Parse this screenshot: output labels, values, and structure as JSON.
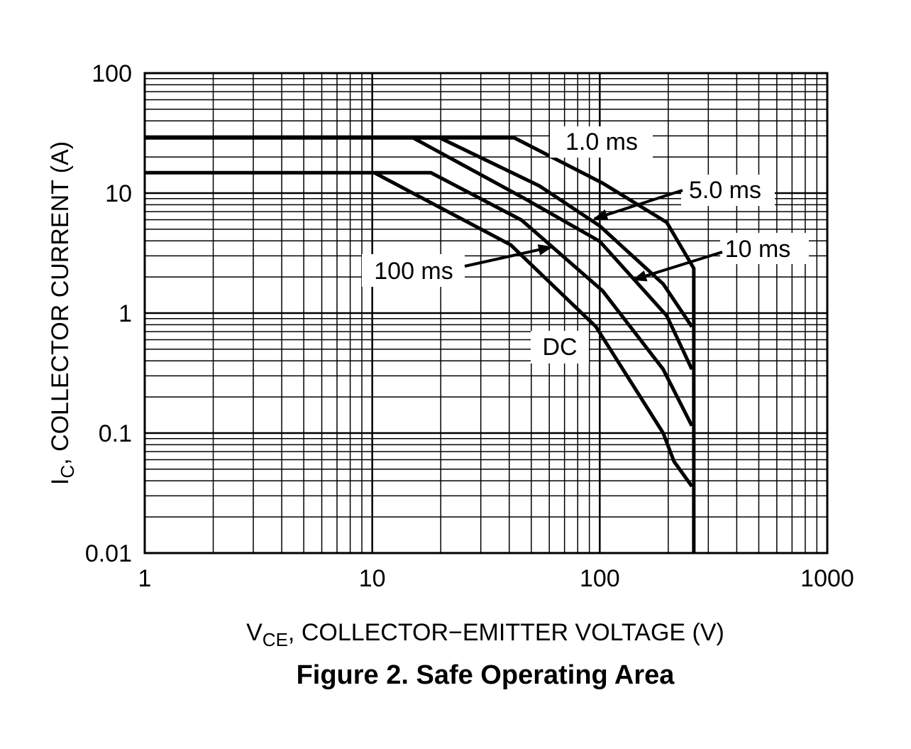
{
  "chart_data": {
    "type": "line",
    "title": "Figure 2. Safe Operating Area",
    "x_label": {
      "main": "V",
      "sub": "CE",
      "rest": ", COLLECTOR−EMITTER VOLTAGE (V)"
    },
    "y_label": {
      "main": "I",
      "sub": "C",
      "rest": ", COLLECTOR CURRENT (A)"
    },
    "log_x": true,
    "log_y": true,
    "grid": true,
    "minor_grid": true,
    "xlim": [
      1,
      1000
    ],
    "ylim": [
      0.01,
      100
    ],
    "xticks": [
      1,
      10,
      100,
      1000
    ],
    "yticks": [
      0.01,
      0.1,
      1,
      10,
      100
    ],
    "series": [
      {
        "name": "1.0 ms",
        "color": "#000000",
        "x": [
          1,
          42.1,
          103,
          197,
          259,
          259
        ],
        "values": [
          28.9,
          28.9,
          12.1,
          5.7,
          2.36,
          0.01
        ]
      },
      {
        "name": "5.0 ms",
        "color": "#000000",
        "x": [
          1,
          19.8,
          54.2,
          99.7,
          190,
          254
        ],
        "values": [
          28.9,
          28.9,
          11.5,
          5.35,
          1.75,
          0.77
        ]
      },
      {
        "name": "10 ms",
        "color": "#000000",
        "x": [
          15.1,
          46.9,
          100,
          197,
          254
        ],
        "values": [
          28.9,
          8.98,
          3.96,
          0.95,
          0.34
        ]
      },
      {
        "name": "100 ms",
        "color": "#000000",
        "x": [
          1,
          18.1,
          45.3,
          103,
          190,
          254
        ],
        "values": [
          14.8,
          14.8,
          5.96,
          1.53,
          0.34,
          0.115
        ]
      },
      {
        "name": "DC",
        "color": "#000000",
        "x": [
          10.2,
          40.6,
          96.2,
          190,
          212,
          254
        ],
        "values": [
          14.8,
          3.7,
          0.77,
          0.1,
          0.058,
          0.036
        ]
      }
    ]
  }
}
